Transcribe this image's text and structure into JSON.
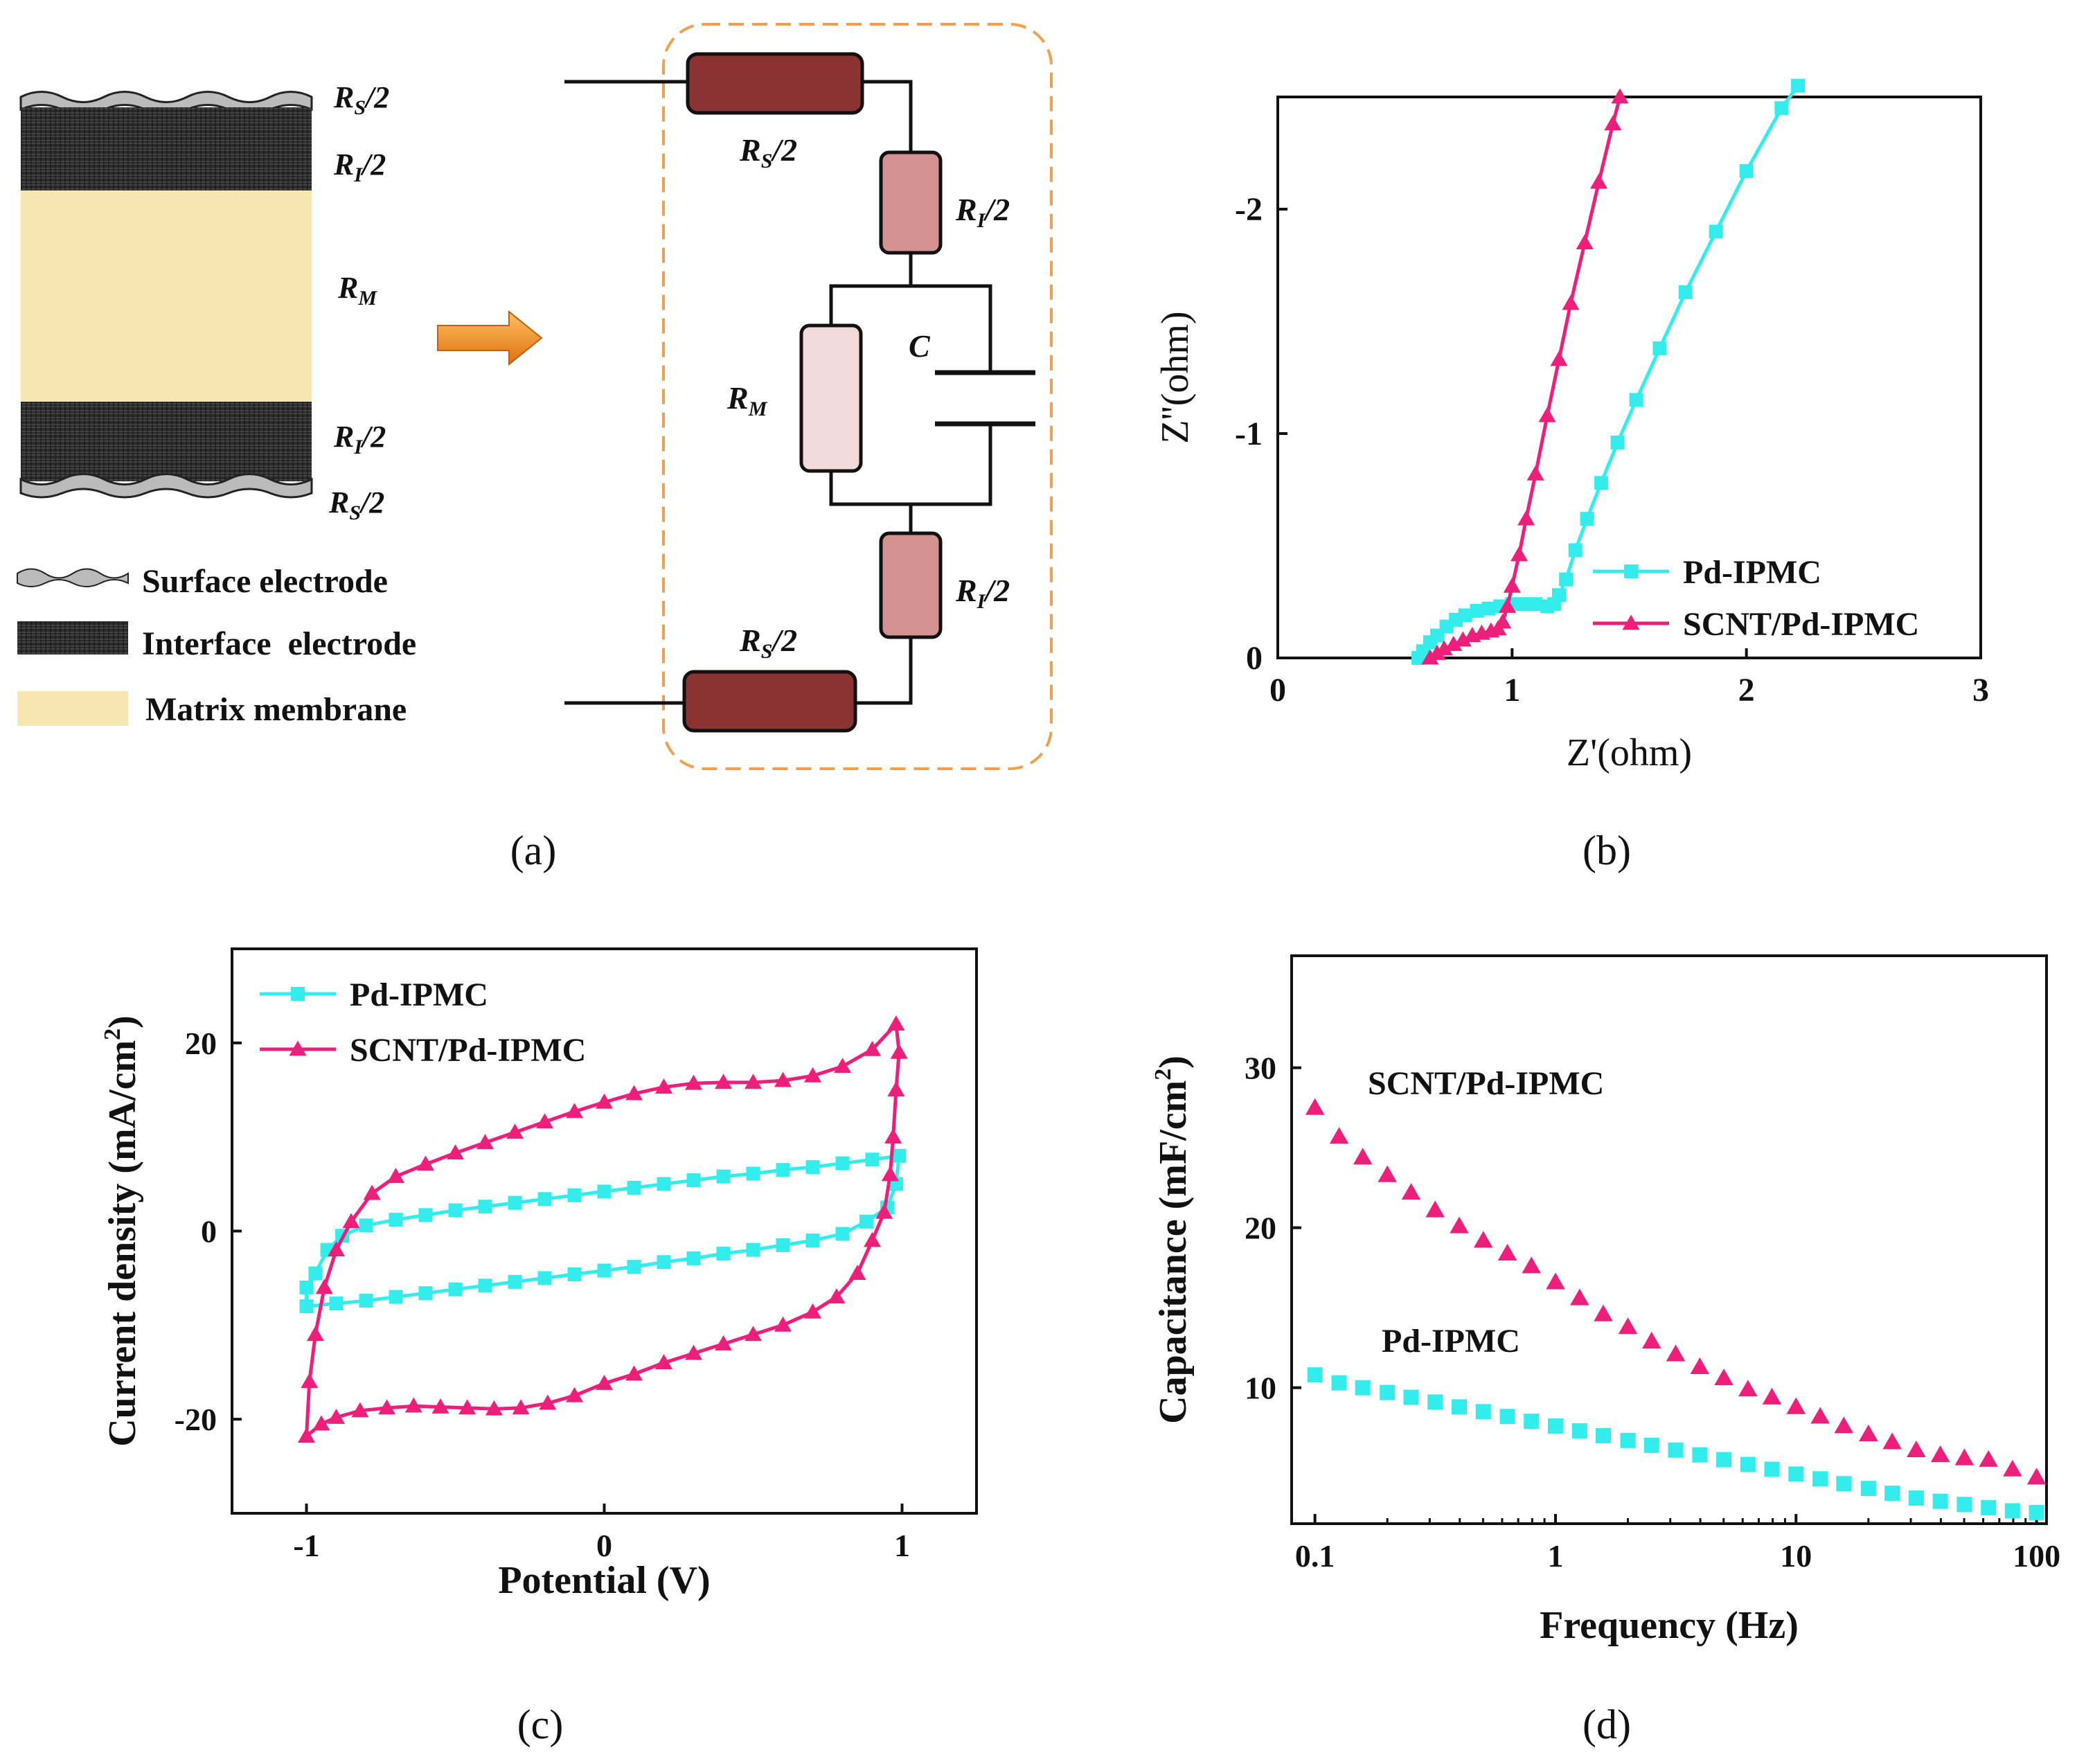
{
  "colors": {
    "cyan": "#33EDED",
    "magenta": "#EE1F7B",
    "resistor_dark": "#8B3232",
    "resistor_mid": "#D39290",
    "resistor_light": "#F2DADA",
    "membrane": "#F7E6B0",
    "electrode_dark": "#252525",
    "dash_border": "#F0A050",
    "arrow": "#F08A1E"
  },
  "panel_a": {
    "caption": "(a)",
    "layer_labels": {
      "rs_top": "R_S/2",
      "ri_top": "R_I/2",
      "rm": "R_M",
      "ri_bottom": "R_I/2",
      "rs_bottom": "R_S/2"
    },
    "legend": {
      "surface": "Surface electrode",
      "interface": "Interface  electrode",
      "matrix": "Matrix membrane"
    },
    "circuit_labels": {
      "rs_top": "R_S/2",
      "ri_top": "R_I/2",
      "rm": "R_M",
      "c": "C",
      "ri_bottom": "R_I/2",
      "rs_bottom": "R_S/2"
    }
  },
  "chart_data": [
    {
      "id": "b",
      "type": "line",
      "caption": "(b)",
      "title": "",
      "xlabel": "Z'(ohm)",
      "ylabel": "Z''(ohm)",
      "xlim": [
        0,
        3
      ],
      "ylim": [
        0,
        -2.5
      ],
      "xticks": [
        "0",
        "1",
        "2",
        "3"
      ],
      "yticks": [
        "0",
        "-1",
        "-2"
      ],
      "legend": [
        "Pd-IPMC",
        "SCNT/Pd-IPMC"
      ],
      "series": [
        {
          "name": "Pd-IPMC",
          "marker": "square",
          "points": [
            [
              0.6,
              0
            ],
            [
              0.62,
              -0.03
            ],
            [
              0.65,
              -0.07
            ],
            [
              0.68,
              -0.1
            ],
            [
              0.72,
              -0.14
            ],
            [
              0.76,
              -0.17
            ],
            [
              0.8,
              -0.19
            ],
            [
              0.85,
              -0.21
            ],
            [
              0.9,
              -0.22
            ],
            [
              0.95,
              -0.23
            ],
            [
              1.0,
              -0.24
            ],
            [
              1.05,
              -0.24
            ],
            [
              1.1,
              -0.24
            ],
            [
              1.15,
              -0.23
            ],
            [
              1.18,
              -0.24
            ],
            [
              1.2,
              -0.28
            ],
            [
              1.23,
              -0.35
            ],
            [
              1.27,
              -0.48
            ],
            [
              1.32,
              -0.62
            ],
            [
              1.38,
              -0.78
            ],
            [
              1.45,
              -0.96
            ],
            [
              1.53,
              -1.15
            ],
            [
              1.63,
              -1.38
            ],
            [
              1.74,
              -1.63
            ],
            [
              1.87,
              -1.9
            ],
            [
              2.0,
              -2.17
            ],
            [
              2.15,
              -2.45
            ],
            [
              2.22,
              -2.55
            ]
          ]
        },
        {
          "name": "SCNT/Pd-IPMC",
          "marker": "triangle",
          "points": [
            [
              0.65,
              0
            ],
            [
              0.68,
              -0.02
            ],
            [
              0.71,
              -0.04
            ],
            [
              0.75,
              -0.06
            ],
            [
              0.79,
              -0.08
            ],
            [
              0.83,
              -0.1
            ],
            [
              0.87,
              -0.11
            ],
            [
              0.91,
              -0.12
            ],
            [
              0.94,
              -0.13
            ],
            [
              0.96,
              -0.16
            ],
            [
              0.98,
              -0.23
            ],
            [
              1.0,
              -0.32
            ],
            [
              1.03,
              -0.46
            ],
            [
              1.06,
              -0.62
            ],
            [
              1.1,
              -0.82
            ],
            [
              1.15,
              -1.08
            ],
            [
              1.2,
              -1.33
            ],
            [
              1.25,
              -1.58
            ],
            [
              1.31,
              -1.85
            ],
            [
              1.37,
              -2.12
            ],
            [
              1.43,
              -2.38
            ],
            [
              1.46,
              -2.5
            ]
          ]
        }
      ]
    },
    {
      "id": "c",
      "type": "line",
      "caption": "(c)",
      "title": "",
      "xlabel": "Potential (V)",
      "ylabel": "Current density (mA/cm",
      "ylabel_sup": "2",
      "ylabel_end": ")",
      "xlim": [
        -1.25,
        1.25
      ],
      "ylim": [
        -30,
        30
      ],
      "xticks": [
        "-1",
        "0",
        "1"
      ],
      "yticks": [
        "-20",
        "0",
        "20"
      ],
      "legend": [
        "Pd-IPMC",
        "SCNT/Pd-IPMC"
      ],
      "series": [
        {
          "name": "Pd-IPMC",
          "marker": "square",
          "closed": true,
          "points": [
            [
              -1.0,
              -8.0
            ],
            [
              -0.9,
              -7.7
            ],
            [
              -0.8,
              -7.4
            ],
            [
              -0.7,
              -7.0
            ],
            [
              -0.6,
              -6.6
            ],
            [
              -0.5,
              -6.2
            ],
            [
              -0.4,
              -5.8
            ],
            [
              -0.3,
              -5.4
            ],
            [
              -0.2,
              -5.0
            ],
            [
              -0.1,
              -4.6
            ],
            [
              0.0,
              -4.2
            ],
            [
              0.1,
              -3.8
            ],
            [
              0.2,
              -3.3
            ],
            [
              0.3,
              -2.9
            ],
            [
              0.4,
              -2.4
            ],
            [
              0.5,
              -2.0
            ],
            [
              0.6,
              -1.5
            ],
            [
              0.7,
              -1.0
            ],
            [
              0.8,
              -0.3
            ],
            [
              0.88,
              1.0
            ],
            [
              0.95,
              2.5
            ],
            [
              0.98,
              5.0
            ],
            [
              0.99,
              8.0
            ],
            [
              0.9,
              7.6
            ],
            [
              0.8,
              7.2
            ],
            [
              0.7,
              6.8
            ],
            [
              0.6,
              6.5
            ],
            [
              0.5,
              6.1
            ],
            [
              0.4,
              5.8
            ],
            [
              0.3,
              5.4
            ],
            [
              0.2,
              5.0
            ],
            [
              0.1,
              4.6
            ],
            [
              0.0,
              4.2
            ],
            [
              -0.1,
              3.8
            ],
            [
              -0.2,
              3.4
            ],
            [
              -0.3,
              3.0
            ],
            [
              -0.4,
              2.6
            ],
            [
              -0.5,
              2.2
            ],
            [
              -0.6,
              1.7
            ],
            [
              -0.7,
              1.2
            ],
            [
              -0.8,
              0.6
            ],
            [
              -0.88,
              -0.5
            ],
            [
              -0.93,
              -2.0
            ],
            [
              -0.97,
              -4.5
            ],
            [
              -1.0,
              -6.0
            ]
          ]
        },
        {
          "name": "SCNT/Pd-IPMC",
          "marker": "triangle",
          "closed": true,
          "points": [
            [
              -1.0,
              -21.8
            ],
            [
              -0.95,
              -20.5
            ],
            [
              -0.9,
              -19.8
            ],
            [
              -0.82,
              -19.1
            ],
            [
              -0.73,
              -18.8
            ],
            [
              -0.64,
              -18.6
            ],
            [
              -0.55,
              -18.7
            ],
            [
              -0.46,
              -18.8
            ],
            [
              -0.37,
              -18.9
            ],
            [
              -0.28,
              -18.8
            ],
            [
              -0.19,
              -18.3
            ],
            [
              -0.1,
              -17.5
            ],
            [
              0.0,
              -16.2
            ],
            [
              0.1,
              -15.2
            ],
            [
              0.2,
              -14.0
            ],
            [
              0.3,
              -13.0
            ],
            [
              0.4,
              -12.0
            ],
            [
              0.5,
              -11.0
            ],
            [
              0.6,
              -10.0
            ],
            [
              0.7,
              -8.6
            ],
            [
              0.78,
              -7.0
            ],
            [
              0.85,
              -4.5
            ],
            [
              0.9,
              -1.0
            ],
            [
              0.94,
              2.0
            ],
            [
              0.96,
              6.0
            ],
            [
              0.97,
              10.0
            ],
            [
              0.98,
              15.0
            ],
            [
              0.99,
              19.0
            ],
            [
              0.98,
              22.0
            ],
            [
              0.9,
              19.3
            ],
            [
              0.8,
              17.5
            ],
            [
              0.7,
              16.5
            ],
            [
              0.6,
              16.0
            ],
            [
              0.5,
              15.8
            ],
            [
              0.4,
              15.8
            ],
            [
              0.3,
              15.7
            ],
            [
              0.2,
              15.3
            ],
            [
              0.1,
              14.6
            ],
            [
              0.0,
              13.7
            ],
            [
              -0.1,
              12.7
            ],
            [
              -0.2,
              11.6
            ],
            [
              -0.3,
              10.5
            ],
            [
              -0.4,
              9.4
            ],
            [
              -0.5,
              8.3
            ],
            [
              -0.6,
              7.1
            ],
            [
              -0.7,
              5.8
            ],
            [
              -0.78,
              4.0
            ],
            [
              -0.85,
              1.0
            ],
            [
              -0.9,
              -2.0
            ],
            [
              -0.94,
              -6.0
            ],
            [
              -0.97,
              -11.0
            ],
            [
              -0.99,
              -16.0
            ]
          ]
        }
      ]
    },
    {
      "id": "d",
      "type": "scatter",
      "caption": "(d)",
      "title": "",
      "xlabel": "Frequency (Hz)",
      "ylabel": "Capacitance (mF/cm",
      "ylabel_sup": "2",
      "ylabel_end": ")",
      "xscale": "log",
      "xlim": [
        0.08,
        110
      ],
      "ylim": [
        1.5,
        37
      ],
      "xticks": [
        "0.1",
        "1",
        "10",
        "100"
      ],
      "yticks": [
        "10",
        "20",
        "30"
      ],
      "annotations": [
        "SCNT/Pd-IPMC",
        "Pd-IPMC"
      ],
      "series": [
        {
          "name": "SCNT/Pd-IPMC",
          "marker": "triangle",
          "x": [
            0.1,
            0.126,
            0.158,
            0.2,
            0.251,
            0.316,
            0.398,
            0.501,
            0.631,
            0.794,
            1.0,
            1.26,
            1.58,
            2.0,
            2.51,
            3.16,
            3.98,
            5.01,
            6.31,
            7.94,
            10,
            12.6,
            15.8,
            20,
            25.1,
            31.6,
            39.8,
            50.1,
            63.1,
            79.4,
            100
          ],
          "y": [
            27.5,
            25.7,
            24.4,
            23.3,
            22.2,
            21.1,
            20.1,
            19.2,
            18.4,
            17.6,
            16.6,
            15.6,
            14.6,
            13.8,
            12.9,
            12.1,
            11.3,
            10.6,
            9.9,
            9.4,
            8.8,
            8.2,
            7.6,
            7.1,
            6.6,
            6.1,
            5.8,
            5.6,
            5.5,
            4.9,
            4.4
          ]
        },
        {
          "name": "Pd-IPMC",
          "marker": "square",
          "x": [
            0.1,
            0.126,
            0.158,
            0.2,
            0.251,
            0.316,
            0.398,
            0.501,
            0.631,
            0.794,
            1.0,
            1.26,
            1.58,
            2.0,
            2.51,
            3.16,
            3.98,
            5.01,
            6.31,
            7.94,
            10,
            12.6,
            15.8,
            20,
            25.1,
            31.6,
            39.8,
            50.1,
            63.1,
            79.4,
            100
          ],
          "y": [
            10.8,
            10.3,
            10.0,
            9.7,
            9.4,
            9.1,
            8.8,
            8.5,
            8.2,
            7.9,
            7.6,
            7.3,
            7.0,
            6.7,
            6.4,
            6.1,
            5.8,
            5.5,
            5.2,
            4.9,
            4.6,
            4.3,
            4.0,
            3.7,
            3.4,
            3.1,
            2.9,
            2.7,
            2.5,
            2.3,
            2.2
          ]
        }
      ]
    }
  ]
}
